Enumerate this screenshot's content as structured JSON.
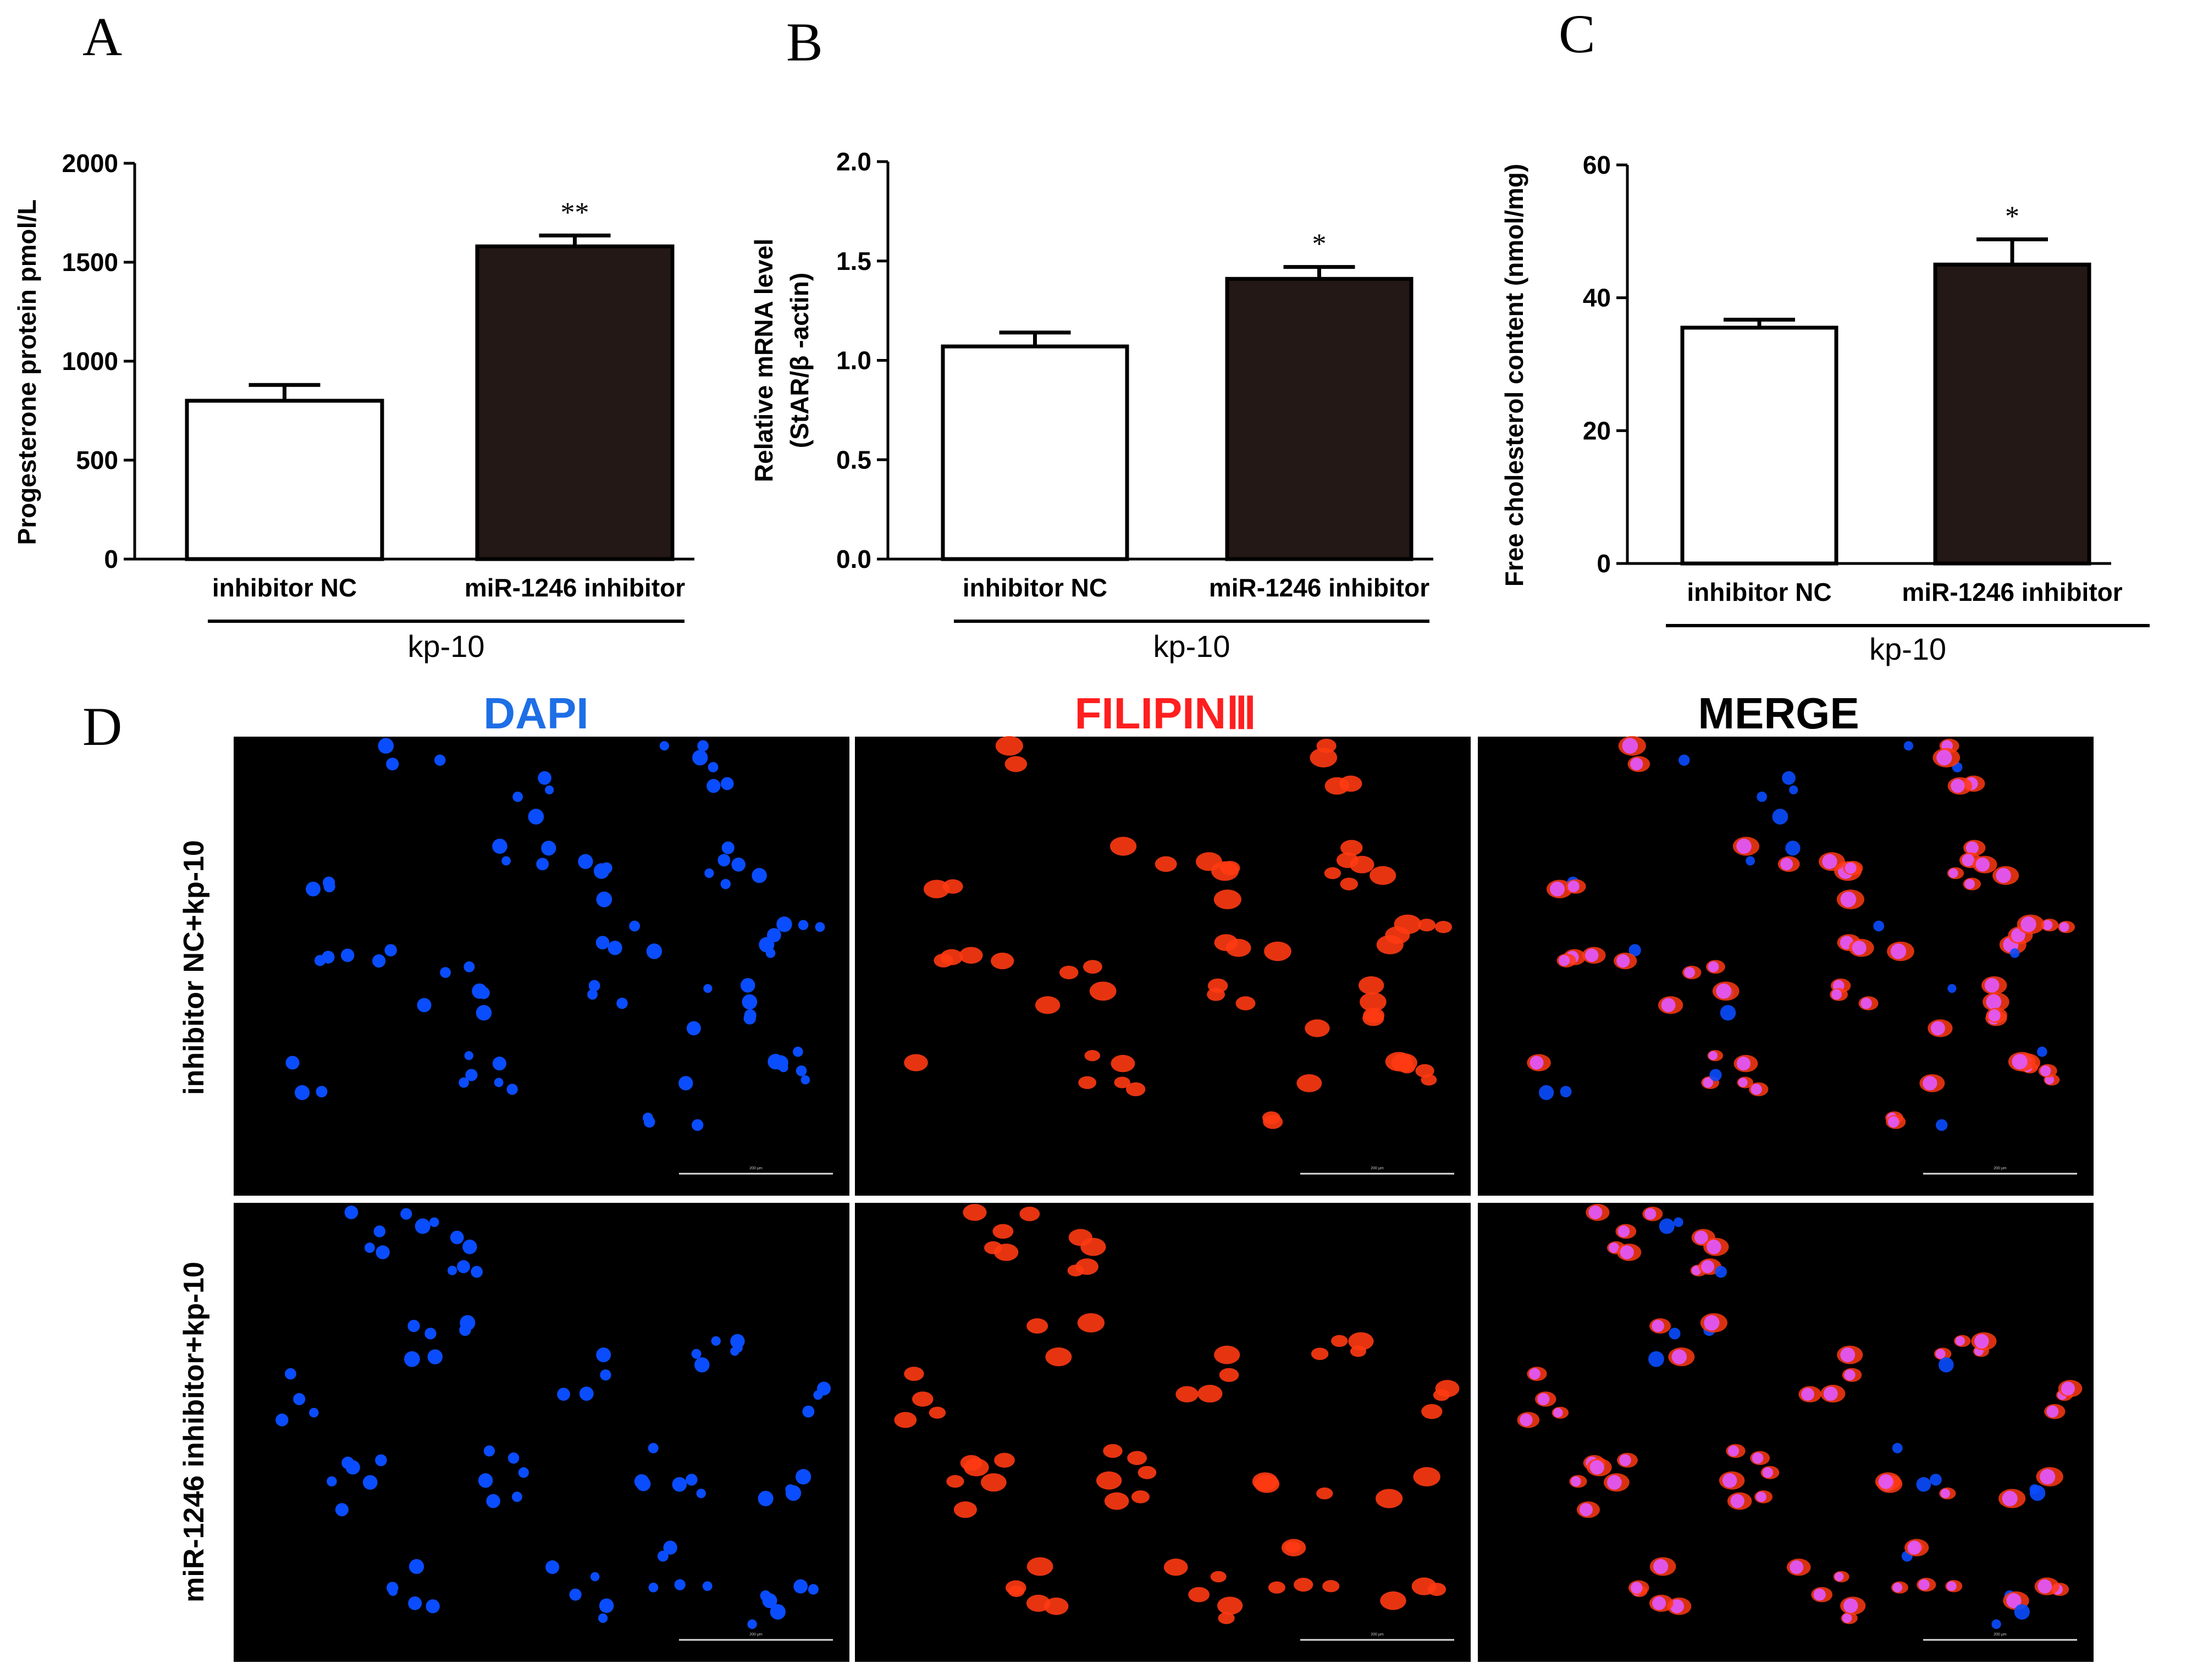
{
  "colors": {
    "bar_control": "#ffffff",
    "bar_treatment": "#231815",
    "dapi": "#1e6fe6",
    "filipin": "#ff1f1f",
    "merge_title": "#000000",
    "micro_bg": "#000000",
    "nucleus": "#0a4dff",
    "cholesterol": "#ff3a12",
    "overlap": "#e05aff"
  },
  "chart_data": [
    {
      "panel": "A",
      "type": "bar",
      "categories": [
        "inhibitor NC",
        "miR-1246 inhibitor"
      ],
      "group_label": "kp-10",
      "ylabel": "Progesterone protein pmol/L",
      "ylim": [
        0,
        2000
      ],
      "yticks": [
        "0",
        "500",
        "1000",
        "1500",
        "2000"
      ],
      "values": [
        800,
        1580
      ],
      "errors": [
        80,
        55
      ],
      "significance": [
        "",
        "**"
      ]
    },
    {
      "panel": "B",
      "type": "bar",
      "categories": [
        "inhibitor NC",
        "miR-1246 inhibitor"
      ],
      "group_label": "kp-10",
      "ylabel": [
        "Relative mRNA level",
        "(StAR/β -actin)"
      ],
      "ylim": [
        0,
        2.0
      ],
      "yticks": [
        "0.0",
        "0.5",
        "1.0",
        "1.5",
        "2.0"
      ],
      "values": [
        1.07,
        1.41
      ],
      "errors": [
        0.07,
        0.06
      ],
      "significance": [
        "",
        "*"
      ]
    },
    {
      "panel": "C",
      "type": "bar",
      "categories": [
        "inhibitor NC",
        "miR-1246 inhibitor"
      ],
      "group_label": "kp-10",
      "ylabel": "Free cholesterol content (nmol/mg)",
      "ylim": [
        0,
        60
      ],
      "yticks": [
        "0",
        "20",
        "40",
        "60"
      ],
      "values": [
        35.5,
        45
      ],
      "errors": [
        1.2,
        3.8
      ],
      "significance": [
        "",
        "*"
      ]
    }
  ],
  "panel_d": {
    "letter": "D",
    "columns": [
      "DAPI",
      "FILIPINⅢ",
      "MERGE"
    ],
    "rows": [
      "inhibitor NC+kp-10",
      "miR-1246 inhibitor+kp-10"
    ],
    "scale_bar_text": "200 μm"
  }
}
